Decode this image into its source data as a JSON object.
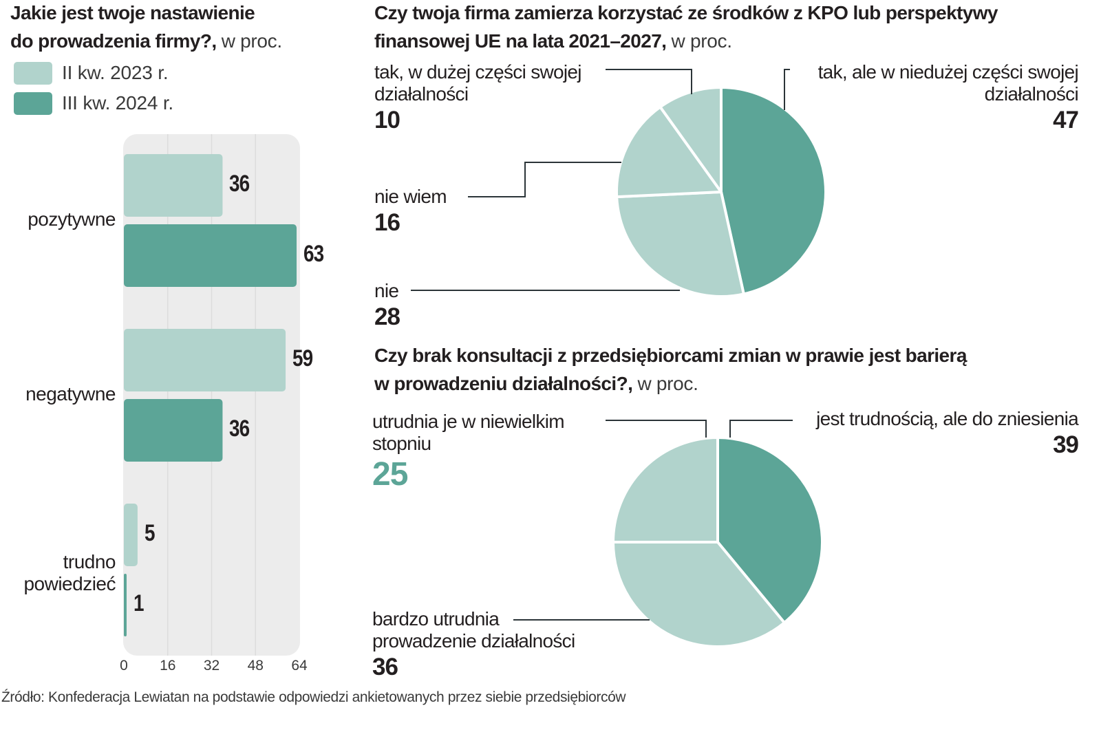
{
  "colors": {
    "light": "#b1d3cc",
    "dark": "#5ca597",
    "text": "#231f20",
    "panel": "#ececec",
    "highlight": "#5ca597"
  },
  "chart_data": [
    {
      "type": "bar",
      "orientation": "horizontal",
      "title": "Jakie jest twoje nastawienie do prowadzenia firmy?",
      "title_lines": [
        "Jakie jest twoje nastawienie",
        "do prowadzenia firmy?,"
      ],
      "unit": "w proc.",
      "categories": [
        "pozytywne",
        "negatywne",
        "trudno powiedzieć"
      ],
      "category_lines": [
        [
          "pozytywne"
        ],
        [
          "negatywne"
        ],
        [
          "trudno",
          "powiedzieć"
        ]
      ],
      "series": [
        {
          "name": "II kw. 2023 r.",
          "color": "#b1d3cc",
          "values": [
            36,
            59,
            5
          ]
        },
        {
          "name": "III kw. 2024 r.",
          "color": "#5ca597",
          "values": [
            63,
            36,
            1
          ]
        }
      ],
      "xlim": [
        0,
        64
      ],
      "xticks": [
        "0",
        "16",
        "32",
        "48",
        "64"
      ],
      "grid": true,
      "legend": "top-left"
    },
    {
      "type": "pie",
      "title": "Czy twoja firma zamierza korzystać ze środków z KPO lub perspektywy finansowej UE na lata 2021–2027",
      "title_lines": [
        "Czy twoja firma zamierza korzystać ze środków z KPO lub perspektywy",
        "finansowej UE na lata 2021–2027,"
      ],
      "unit": "w proc.",
      "slices": [
        {
          "label": "tak, ale w niedużej części swojej działalności",
          "label_lines": [
            "tak, ale w niedużej części swojej",
            "działalności"
          ],
          "value": 47,
          "color": "#5ca597"
        },
        {
          "label": "nie",
          "label_lines": [
            "nie"
          ],
          "value": 28,
          "color": "#b1d3cc"
        },
        {
          "label": "nie wiem",
          "label_lines": [
            "nie wiem"
          ],
          "value": 16,
          "color": "#b1d3cc"
        },
        {
          "label": "tak, w dużej części swojej działalności",
          "label_lines": [
            "tak, w dużej części swojej",
            "działalności"
          ],
          "value": 10,
          "color": "#b1d3cc"
        }
      ]
    },
    {
      "type": "pie",
      "title": "Czy brak konsultacji z przedsiębiorcami zmian w prawie jest barierą w prowadzeniu działalności?",
      "title_lines": [
        "Czy brak konsultacji z przedsiębiorcami zmian w prawie jest barierą",
        "w prowadzeniu działalności?,"
      ],
      "unit": "w proc.",
      "slices": [
        {
          "label": "jest trudnością, ale do zniesienia",
          "label_lines": [
            "jest trudnością, ale do zniesienia"
          ],
          "value": 39,
          "color": "#5ca597"
        },
        {
          "label": "bardzo utrudnia prowadzenie działalności",
          "label_lines": [
            "bardzo utrudnia",
            "prowadzenie działalności"
          ],
          "value": 36,
          "color": "#b1d3cc"
        },
        {
          "label": "utrudnia je w niewielkim stopniu",
          "label_lines": [
            "utrudnia je w niewielkim",
            "stopniu"
          ],
          "value": 25,
          "color": "#b1d3cc",
          "value_highlight": true
        }
      ]
    }
  ],
  "source": "Źródło: Konfederacja Lewiatan na podstawie odpowiedzi ankietowanych przez siebie przedsiębiorców"
}
